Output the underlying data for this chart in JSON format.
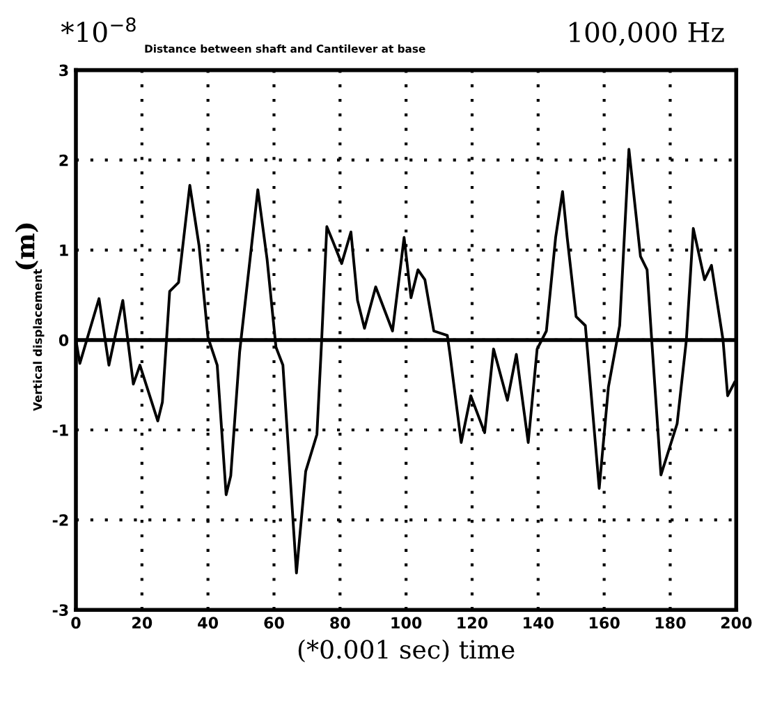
{
  "chart_data": {
    "type": "line",
    "title": "100,000 Hz",
    "subtitle": "Distance between shaft and Cantilever at base",
    "xlabel": "(*0.001 sec) time",
    "ylabel": "Vertical displacement",
    "annotations": [
      "(m)",
      "*10$^{−8}$"
    ],
    "x": [
      0,
      1.2,
      7,
      10,
      14.2,
      17.4,
      19.4,
      22.1,
      24.8,
      26.2,
      28.4,
      31.1,
      34.5,
      37.3,
      40,
      42.8,
      45.5,
      46.9,
      49.6,
      55.1,
      57.9,
      60.6,
      62.7,
      66.8,
      69.6,
      73,
      74.4,
      76,
      77.8,
      80.5,
      83.3,
      85.3,
      87.4,
      90.8,
      95.9,
      98,
      99.4,
      101.5,
      103.6,
      105.7,
      108.4,
      112.5,
      113.3,
      116.7,
      119.6,
      123.8,
      126.5,
      130.7,
      133.4,
      137,
      139.7,
      142.5,
      145.3,
      147.4,
      148.8,
      151.5,
      154.3,
      158.5,
      161.3,
      163.4,
      164.7,
      167.5,
      171,
      173,
      174.4,
      177.2,
      182.1,
      184.9,
      187,
      190.4,
      192.5,
      196,
      197.4,
      199.5
    ],
    "values": [
      0,
      -0.26,
      0.46,
      -0.28,
      0.44,
      -0.49,
      -0.28,
      -0.59,
      -0.9,
      -0.69,
      0.54,
      0.64,
      1.72,
      1.05,
      0.03,
      -0.28,
      -1.72,
      -1.51,
      -0.13,
      1.67,
      0.9,
      -0.08,
      -0.28,
      -2.59,
      -1.46,
      -1.05,
      -0.03,
      1.26,
      1.1,
      0.85,
      1.2,
      0.44,
      0.13,
      0.59,
      0.1,
      0.72,
      1.14,
      0.47,
      0.78,
      0.67,
      0.1,
      0.05,
      -0.16,
      -1.14,
      -0.62,
      -1.03,
      -0.1,
      -0.67,
      -0.16,
      -1.14,
      -0.1,
      0.1,
      1.14,
      1.65,
      1.14,
      0.26,
      0.16,
      -1.65,
      -0.52,
      -0.1,
      0.16,
      2.12,
      0.93,
      0.78,
      0,
      -1.5,
      -0.93,
      0,
      1.24,
      0.67,
      0.83,
      0,
      -0.62,
      -0.47
    ],
    "color": "#000000",
    "xlim": [
      0,
      200
    ],
    "xticks": [
      0,
      20,
      40,
      60,
      80,
      100,
      120,
      140,
      160,
      180,
      200
    ],
    "ylim": [
      -3,
      3
    ],
    "yticks": [
      -3,
      -2,
      -1,
      0,
      1,
      2,
      3
    ],
    "ref_lines": [
      {
        "axis": "y",
        "value": 0,
        "color": "#000000"
      }
    ],
    "grid": true
  }
}
